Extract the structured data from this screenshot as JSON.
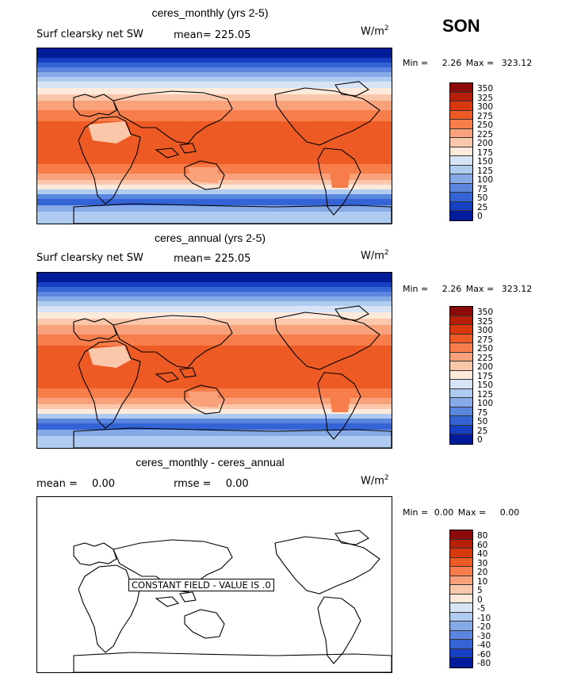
{
  "season": "SON",
  "panels": [
    {
      "title": "ceres_monthly (yrs 2-5)",
      "left_label": "Surf clearsky net SW",
      "mean_label": "mean=",
      "mean_value": "225.05",
      "units": "W/m",
      "units_exp": "2",
      "min_label": "Min =",
      "min_value": "2.26",
      "max_label": "Max =",
      "max_value": "323.12",
      "colorbar": [
        "350",
        "325",
        "300",
        "275",
        "250",
        "225",
        "200",
        "175",
        "150",
        "125",
        "100",
        "75",
        "50",
        "25",
        "0"
      ]
    },
    {
      "title": "ceres_annual (yrs 2-5)",
      "left_label": "Surf clearsky net SW",
      "mean_label": "mean=",
      "mean_value": "225.05",
      "units": "W/m",
      "units_exp": "2",
      "min_label": "Min =",
      "min_value": "2.26",
      "max_label": "Max =",
      "max_value": "323.12",
      "colorbar": [
        "350",
        "325",
        "300",
        "275",
        "250",
        "225",
        "200",
        "175",
        "150",
        "125",
        "100",
        "75",
        "50",
        "25",
        "0"
      ]
    },
    {
      "title": "ceres_monthly - ceres_annual",
      "mean_label": "mean =",
      "mean_value": "0.00",
      "rmse_label": "rmse =",
      "rmse_value": "0.00",
      "units": "W/m",
      "units_exp": "2",
      "min_label": "Min =",
      "min_value": "0.00",
      "max_label": "Max =",
      "max_value": "0.00",
      "constant_text": "CONSTANT FIELD - VALUE IS .0",
      "colorbar": [
        "80",
        "60",
        "40",
        "30",
        "20",
        "10",
        "5",
        "0",
        "-5",
        "-10",
        "-20",
        "-30",
        "-40",
        "-60",
        "-80"
      ]
    }
  ],
  "colors": {
    "scale": [
      "#8b0a0a",
      "#b81f0a",
      "#d9380f",
      "#ee5a24",
      "#f77e4a",
      "#f9a17a",
      "#fbc7ab",
      "#fdeadb",
      "#d6e4f5",
      "#b0cbf0",
      "#86aae8",
      "#5b86e0",
      "#3463d6",
      "#1540c2",
      "#001c9a"
    ]
  }
}
